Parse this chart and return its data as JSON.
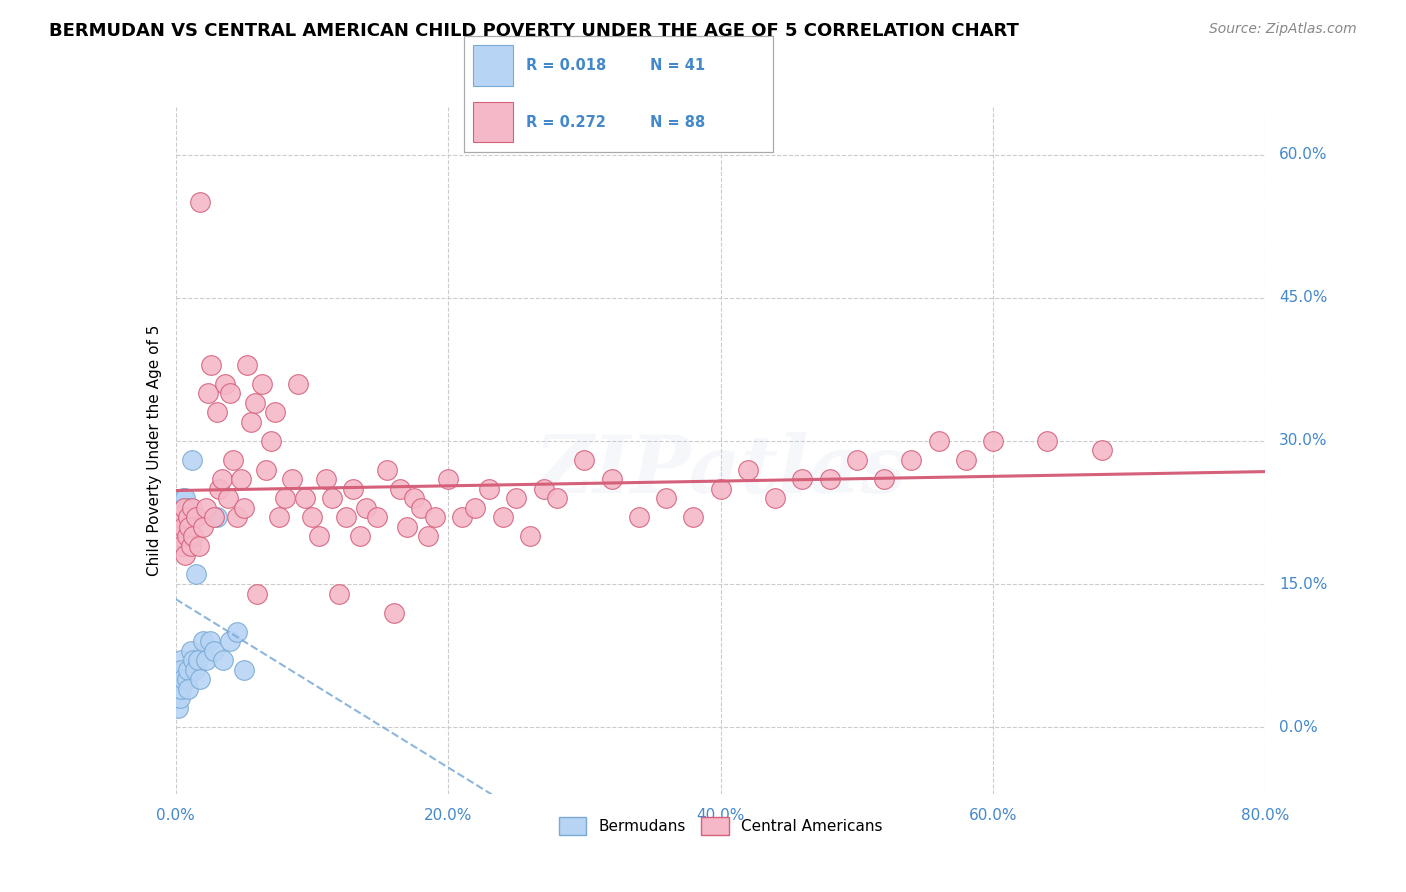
{
  "title": "BERMUDAN VS CENTRAL AMERICAN CHILD POVERTY UNDER THE AGE OF 5 CORRELATION CHART",
  "source": "Source: ZipAtlas.com",
  "xlabel_ticks": [
    "0.0%",
    "20.0%",
    "40.0%",
    "60.0%",
    "80.0%"
  ],
  "ylabel_ticks_right": [
    "60.0%",
    "45.0%",
    "30.0%",
    "15.0%",
    "0.0%"
  ],
  "xlim": [
    0.0,
    0.8
  ],
  "ylim": [
    -0.07,
    0.65
  ],
  "bermudans": {
    "color": "#b8d4f5",
    "edge_color": "#7aaad4",
    "line_color": "#7aaad4",
    "R": 0.018,
    "N": 41,
    "x": [
      0.002,
      0.002,
      0.003,
      0.003,
      0.003,
      0.004,
      0.004,
      0.004,
      0.005,
      0.005,
      0.005,
      0.006,
      0.006,
      0.006,
      0.007,
      0.007,
      0.007,
      0.008,
      0.008,
      0.008,
      0.009,
      0.009,
      0.01,
      0.01,
      0.01,
      0.011,
      0.012,
      0.013,
      0.014,
      0.015,
      0.016,
      0.018,
      0.02,
      0.022,
      0.025,
      0.028,
      0.03,
      0.035,
      0.04,
      0.045,
      0.05
    ],
    "y": [
      0.04,
      0.02,
      0.05,
      0.06,
      0.03,
      0.07,
      0.04,
      0.06,
      0.22,
      0.05,
      0.24,
      0.21,
      0.23,
      0.2,
      0.22,
      0.24,
      0.19,
      0.2,
      0.22,
      0.05,
      0.06,
      0.04,
      0.21,
      0.2,
      0.23,
      0.08,
      0.28,
      0.07,
      0.06,
      0.16,
      0.07,
      0.05,
      0.09,
      0.07,
      0.09,
      0.08,
      0.22,
      0.07,
      0.09,
      0.1,
      0.06
    ]
  },
  "central_americans": {
    "color": "#f5b8c8",
    "edge_color": "#d4607a",
    "line_color": "#d4607a",
    "R": 0.272,
    "N": 88,
    "x": [
      0.002,
      0.003,
      0.004,
      0.005,
      0.006,
      0.007,
      0.008,
      0.009,
      0.01,
      0.011,
      0.012,
      0.013,
      0.015,
      0.017,
      0.018,
      0.02,
      0.022,
      0.024,
      0.026,
      0.028,
      0.03,
      0.032,
      0.034,
      0.036,
      0.038,
      0.04,
      0.042,
      0.045,
      0.048,
      0.05,
      0.052,
      0.055,
      0.058,
      0.06,
      0.063,
      0.066,
      0.07,
      0.073,
      0.076,
      0.08,
      0.085,
      0.09,
      0.095,
      0.1,
      0.105,
      0.11,
      0.115,
      0.12,
      0.125,
      0.13,
      0.135,
      0.14,
      0.148,
      0.155,
      0.16,
      0.165,
      0.17,
      0.175,
      0.18,
      0.185,
      0.19,
      0.2,
      0.21,
      0.22,
      0.23,
      0.24,
      0.25,
      0.26,
      0.27,
      0.28,
      0.3,
      0.32,
      0.34,
      0.36,
      0.38,
      0.4,
      0.42,
      0.44,
      0.46,
      0.48,
      0.5,
      0.52,
      0.54,
      0.56,
      0.58,
      0.6,
      0.64,
      0.68
    ],
    "y": [
      0.2,
      0.22,
      0.19,
      0.21,
      0.23,
      0.18,
      0.2,
      0.22,
      0.21,
      0.19,
      0.23,
      0.2,
      0.22,
      0.19,
      0.55,
      0.21,
      0.23,
      0.35,
      0.38,
      0.22,
      0.33,
      0.25,
      0.26,
      0.36,
      0.24,
      0.35,
      0.28,
      0.22,
      0.26,
      0.23,
      0.38,
      0.32,
      0.34,
      0.14,
      0.36,
      0.27,
      0.3,
      0.33,
      0.22,
      0.24,
      0.26,
      0.36,
      0.24,
      0.22,
      0.2,
      0.26,
      0.24,
      0.14,
      0.22,
      0.25,
      0.2,
      0.23,
      0.22,
      0.27,
      0.12,
      0.25,
      0.21,
      0.24,
      0.23,
      0.2,
      0.22,
      0.26,
      0.22,
      0.23,
      0.25,
      0.22,
      0.24,
      0.2,
      0.25,
      0.24,
      0.28,
      0.26,
      0.22,
      0.24,
      0.22,
      0.25,
      0.27,
      0.24,
      0.26,
      0.26,
      0.28,
      0.26,
      0.28,
      0.3,
      0.28,
      0.3,
      0.3,
      0.29
    ]
  },
  "background_color": "#ffffff",
  "grid_color": "#cccccc",
  "title_fontsize": 13,
  "axis_label_fontsize": 11,
  "tick_fontsize": 11,
  "source_fontsize": 10,
  "tick_color": "#4488cc",
  "watermark_text": "ZIPatlas",
  "watermark_alpha": 0.18
}
